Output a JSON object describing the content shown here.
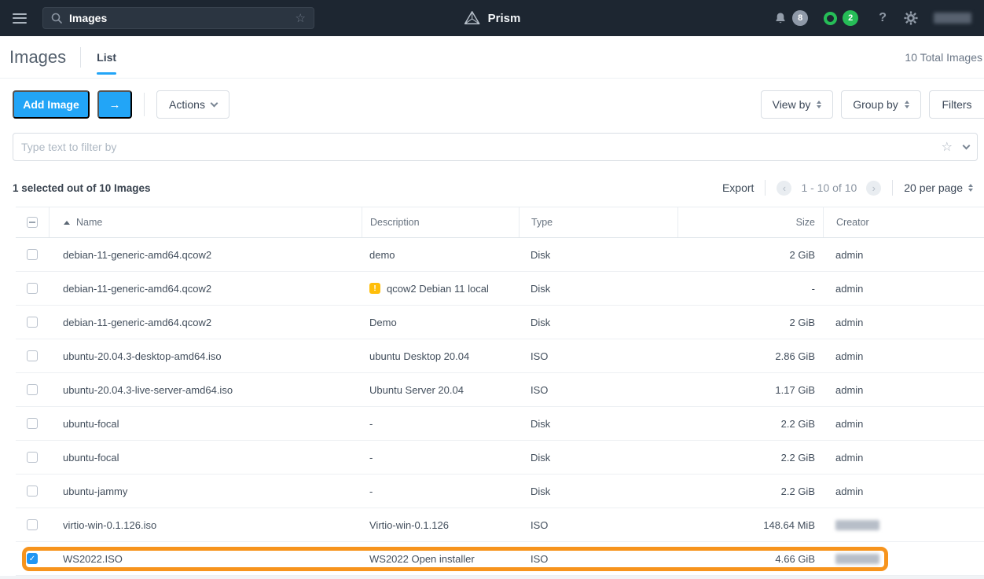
{
  "topbar": {
    "search_value": "Images",
    "brand": "Prism",
    "alerts_count": "8",
    "tasks_count": "2",
    "help_label": "?",
    "user_redacted": true
  },
  "header": {
    "title": "Images",
    "tab_list": "List",
    "total_label": "10 Total Images"
  },
  "toolbar": {
    "add_image_label": "Add Image",
    "arrow_label": "→",
    "actions_label": "Actions",
    "view_by_label": "View by",
    "group_by_label": "Group by",
    "filters_label": "Filters"
  },
  "filterbar": {
    "placeholder": "Type text to filter by"
  },
  "list_controls": {
    "selection_summary": "1 selected out of 10 Images",
    "export_label": "Export",
    "page_range": "1 - 10 of 10",
    "per_page": "20 per page"
  },
  "table": {
    "columns": [
      "Name",
      "Description",
      "Type",
      "Size",
      "Creator"
    ],
    "rows": [
      {
        "name": "debian-11-generic-amd64.qcow2",
        "description": "demo",
        "type": "Disk",
        "size": "2 GiB",
        "creator": "admin",
        "warning": false,
        "selected": false,
        "highlighted": false,
        "creator_redacted": false
      },
      {
        "name": "debian-11-generic-amd64.qcow2",
        "description": "qcow2 Debian 11 local",
        "type": "Disk",
        "size": "-",
        "creator": "admin",
        "warning": true,
        "selected": false,
        "highlighted": false,
        "creator_redacted": false
      },
      {
        "name": "debian-11-generic-amd64.qcow2",
        "description": "Demo",
        "type": "Disk",
        "size": "2 GiB",
        "creator": "admin",
        "warning": false,
        "selected": false,
        "highlighted": false,
        "creator_redacted": false
      },
      {
        "name": "ubuntu-20.04.3-desktop-amd64.iso",
        "description": "ubuntu Desktop 20.04",
        "type": "ISO",
        "size": "2.86 GiB",
        "creator": "admin",
        "warning": false,
        "selected": false,
        "highlighted": false,
        "creator_redacted": false
      },
      {
        "name": "ubuntu-20.04.3-live-server-amd64.iso",
        "description": "Ubuntu Server 20.04",
        "type": "ISO",
        "size": "1.17 GiB",
        "creator": "admin",
        "warning": false,
        "selected": false,
        "highlighted": false,
        "creator_redacted": false
      },
      {
        "name": "ubuntu-focal",
        "description": "-",
        "type": "Disk",
        "size": "2.2 GiB",
        "creator": "admin",
        "warning": false,
        "selected": false,
        "highlighted": false,
        "creator_redacted": false
      },
      {
        "name": "ubuntu-focal",
        "description": "-",
        "type": "Disk",
        "size": "2.2 GiB",
        "creator": "admin",
        "warning": false,
        "selected": false,
        "highlighted": false,
        "creator_redacted": false
      },
      {
        "name": "ubuntu-jammy",
        "description": "-",
        "type": "Disk",
        "size": "2.2 GiB",
        "creator": "admin",
        "warning": false,
        "selected": false,
        "highlighted": false,
        "creator_redacted": false
      },
      {
        "name": "virtio-win-0.1.126.iso",
        "description": "Virtio-win-0.1.126",
        "type": "ISO",
        "size": "148.64 MiB",
        "creator": "",
        "warning": false,
        "selected": false,
        "highlighted": false,
        "creator_redacted": true
      },
      {
        "name": "WS2022.ISO",
        "description": "WS2022 Open installer",
        "type": "ISO",
        "size": "4.66 GiB",
        "creator": "",
        "warning": false,
        "selected": true,
        "highlighted": true,
        "creator_redacted": true
      }
    ]
  },
  "colors": {
    "accent_blue": "#22a5f7",
    "highlight_orange": "#f7941d",
    "warning_yellow": "#ffbe0a",
    "badge_green": "#26bd57",
    "badge_gray": "#8f99a8"
  }
}
